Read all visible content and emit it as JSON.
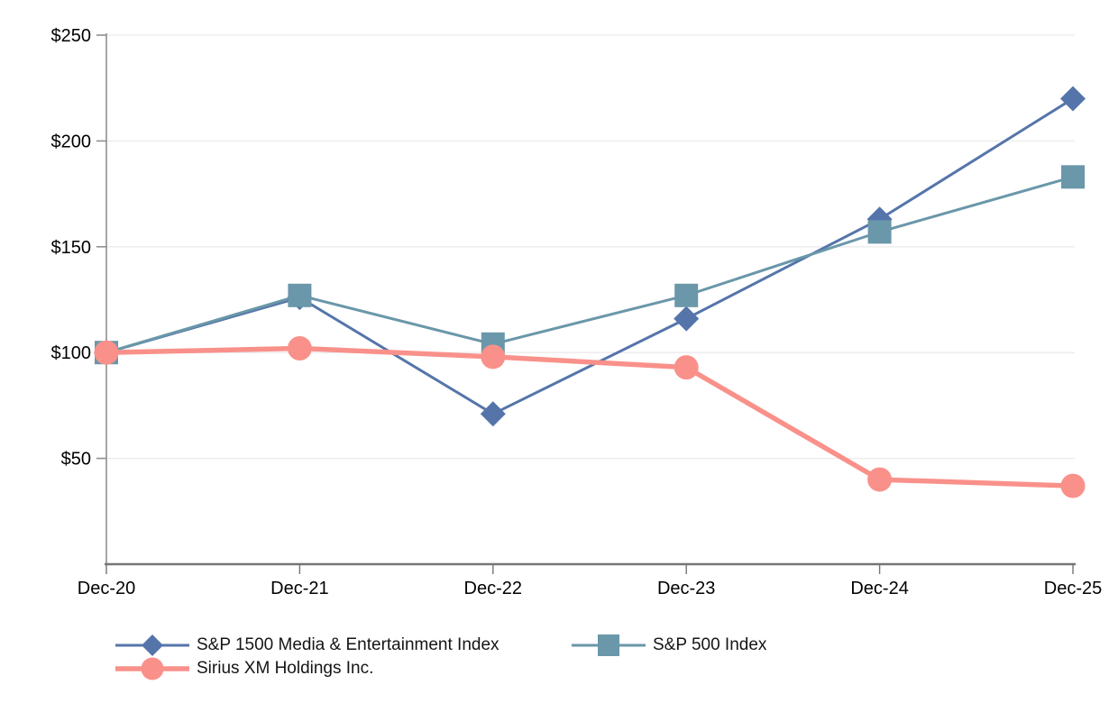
{
  "chart_data": {
    "type": "line",
    "title": "",
    "x": [
      "Dec-20",
      "Dec-21",
      "Dec-22",
      "Dec-23",
      "Dec-24",
      "Dec-25"
    ],
    "series": [
      {
        "name": "S&P 1500 Media & Entertainment Index",
        "marker": "diamond",
        "color": "#5575aa",
        "line_width": 3,
        "values": [
          100,
          126,
          71,
          116,
          163,
          220
        ]
      },
      {
        "name": "S&P 500 Index",
        "marker": "square",
        "color": "#6a97a9",
        "line_width": 3,
        "values": [
          100,
          127,
          104,
          127,
          157,
          183
        ]
      },
      {
        "name": "Sirius XM Holdings Inc.",
        "marker": "circle",
        "color": "#f9918a",
        "line_width": 5.5,
        "values": [
          100,
          102,
          98,
          93,
          40,
          37
        ]
      }
    ],
    "y_axis": {
      "tick_labels": [
        "$50",
        "$100",
        "$150",
        "$200",
        "$250"
      ],
      "tick_values": [
        50,
        100,
        150,
        200,
        250
      ],
      "min": 0,
      "max": 250,
      "prefix": "$"
    },
    "grid": true,
    "legend_position": "bottom-left",
    "colors": {
      "grid": "#ebebeb",
      "y_axis": "#8f8f8f",
      "x_axis": "#757575",
      "label": "#000000"
    }
  }
}
